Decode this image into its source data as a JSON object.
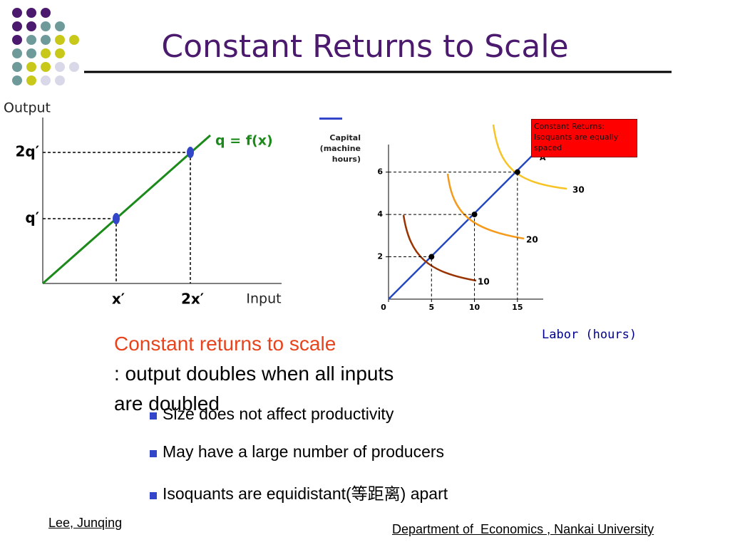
{
  "title": "Constant Returns to Scale",
  "left_diagram": {
    "y_axis_label": "Output",
    "x_axis_label": "Input",
    "curve_label": "q = f(x)",
    "y_labels": [
      "2q′",
      "q′"
    ],
    "x_labels": [
      "x′",
      "2x′"
    ]
  },
  "right_chart": {
    "type": "line",
    "y_axis_label": "Capital (machine hours)",
    "x_axis_label": "Labor (hours)",
    "xlim": [
      0,
      18
    ],
    "xticks": [
      0,
      5,
      10,
      15
    ],
    "ylim": [
      0,
      7.3
    ],
    "yticks": [
      2,
      4,
      6
    ],
    "callout": "Constant Returns: Isoquants are equally spaced",
    "ray_label": "A",
    "points": {
      "x": [
        5,
        10,
        15
      ],
      "y": [
        2,
        4,
        6
      ]
    },
    "isoquants": [
      {
        "name": "10",
        "color": "#993300"
      },
      {
        "name": "20",
        "color": "#f59a1b"
      },
      {
        "name": "30",
        "color": "#f7c325"
      }
    ]
  },
  "text": {
    "definition_term": "Constant returns to scale",
    "definition_rest": ": output doubles when all inputs are doubled",
    "bullets": [
      "Size does not affect productivity",
      "May have a large number of producers",
      "Isoquants are equidistant(等距离) apart"
    ]
  },
  "footer": {
    "author": "Lee, Junqing",
    "department": "Department of  Economics , Nankai University"
  }
}
